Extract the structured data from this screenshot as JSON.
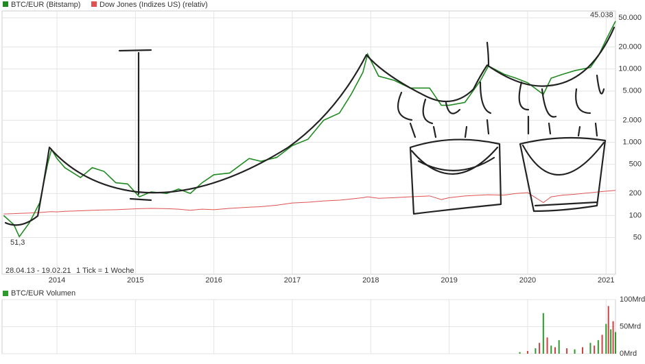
{
  "chart_data": {
    "type": "line",
    "legend": [
      "BTC/EUR (Bitstamp)",
      "Dow Jones (Indizes US) (relativ)"
    ],
    "annotations": {
      "min": "51,3",
      "max": "45.038",
      "range": "28.04.13 - 19.02.21",
      "tick": "1 Tick = 1 Woche"
    },
    "log_scale": true,
    "grid": true,
    "xlim": [
      2013.3,
      2021.12
    ],
    "xticks": [
      2014,
      2015,
      2016,
      2017,
      2018,
      2019,
      2020,
      2021
    ],
    "ylim": [
      15.8,
      62000
    ],
    "yticks": [
      50,
      100,
      200,
      500,
      {
        "value": 1000,
        "label": "1.000"
      },
      {
        "value": 2000,
        "label": "2.000"
      },
      {
        "value": 5000,
        "label": "5.000"
      },
      {
        "value": 10000,
        "label": "10.000"
      },
      {
        "value": 20000,
        "label": "20.000"
      },
      {
        "value": 50000,
        "label": "50.000"
      }
    ],
    "x": [
      2013.32,
      2013.45,
      2013.52,
      2013.65,
      2013.78,
      2013.88,
      2013.93,
      2014.0,
      2014.1,
      2014.3,
      2014.45,
      2014.6,
      2014.75,
      2014.9,
      2015.05,
      2015.2,
      2015.4,
      2015.55,
      2015.7,
      2015.85,
      2016.0,
      2016.2,
      2016.45,
      2016.6,
      2016.8,
      2017.0,
      2017.2,
      2017.4,
      2017.6,
      2017.75,
      2017.9,
      2017.96,
      2018.1,
      2018.3,
      2018.5,
      2018.75,
      2018.9,
      2019.0,
      2019.2,
      2019.4,
      2019.5,
      2019.7,
      2019.85,
      2020.0,
      2020.2,
      2020.3,
      2020.45,
      2020.6,
      2020.8,
      2020.9,
      2021.0,
      2021.12
    ],
    "series": [
      {
        "name": "BTC/EUR (Bitstamp)",
        "color": "#1f8a1f",
        "values": [
          100,
          75,
          51.3,
          80,
          150,
          500,
          800,
          600,
          450,
          330,
          450,
          400,
          280,
          270,
          180,
          210,
          200,
          230,
          200,
          280,
          360,
          380,
          600,
          550,
          620,
          900,
          1100,
          2000,
          2500,
          4500,
          9000,
          16000,
          8000,
          7000,
          5500,
          5500,
          3200,
          3200,
          3500,
          7000,
          11000,
          8500,
          7500,
          6500,
          4500,
          7500,
          8500,
          9500,
          10500,
          15000,
          25000,
          45038
        ]
      },
      {
        "name": "Dow Jones (Indizes US) (relativ)",
        "color": "#e05050",
        "values": [
          105,
          106,
          107,
          108,
          110,
          112,
          113,
          112,
          114,
          116,
          118,
          119,
          120,
          122,
          124,
          125,
          124,
          122,
          118,
          122,
          120,
          125,
          130,
          132,
          138,
          148,
          152,
          158,
          162,
          168,
          175,
          180,
          172,
          175,
          180,
          185,
          165,
          175,
          185,
          190,
          192,
          190,
          200,
          205,
          150,
          180,
          190,
          195,
          205,
          210,
          215,
          220
        ]
      }
    ],
    "volume": {
      "title": "BTC/EUR Volumen",
      "color": "#2c9a2c",
      "ylim": [
        0,
        100
      ],
      "yticks": [
        {
          "value": 0,
          "label": "0Mrd"
        },
        {
          "value": 50,
          "label": "50Mrd"
        },
        {
          "value": 100,
          "label": "100Mrd"
        }
      ],
      "x": [
        2019.9,
        2020.0,
        2020.1,
        2020.15,
        2020.2,
        2020.25,
        2020.3,
        2020.35,
        2020.4,
        2020.5,
        2020.6,
        2020.7,
        2020.8,
        2020.85,
        2020.9,
        2020.95,
        2021.0,
        2021.03,
        2021.06,
        2021.09,
        2021.12
      ],
      "values": [
        3,
        5,
        10,
        20,
        75,
        30,
        15,
        12,
        25,
        10,
        8,
        12,
        20,
        15,
        25,
        35,
        55,
        88,
        45,
        60,
        40
      ]
    }
  }
}
